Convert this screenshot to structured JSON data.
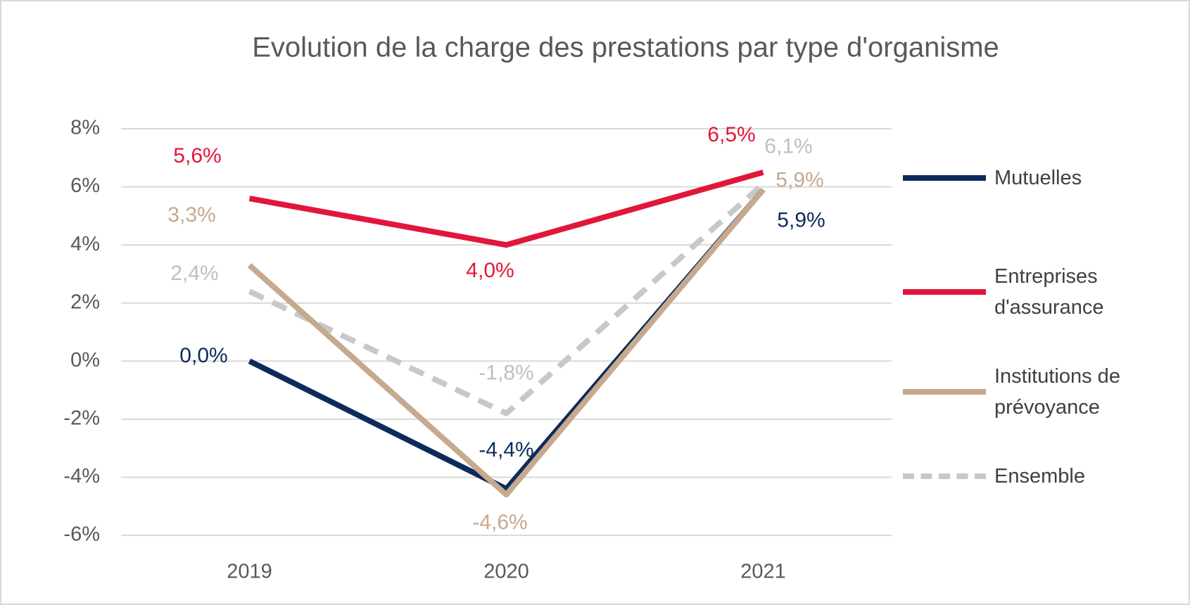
{
  "chart_data": {
    "type": "line",
    "title": "Evolution de la charge des prestations par type d'organisme",
    "categories": [
      "2019",
      "2020",
      "2021"
    ],
    "ylim": [
      -6,
      8
    ],
    "yticks": [
      {
        "value": -6,
        "label": "-6%"
      },
      {
        "value": -4,
        "label": "-4%"
      },
      {
        "value": -2,
        "label": "-2%"
      },
      {
        "value": 0,
        "label": "0%"
      },
      {
        "value": 2,
        "label": "2%"
      },
      {
        "value": 4,
        "label": "4%"
      },
      {
        "value": 6,
        "label": "6%"
      },
      {
        "value": 8,
        "label": "8%"
      }
    ],
    "grid": true,
    "legend": "right",
    "series": [
      {
        "name": "Mutuelles",
        "color": "#0d2a5c",
        "values": [
          0.0,
          -4.4,
          5.9
        ],
        "value_labels": [
          "0,0%",
          "-4,4%",
          "5,9%"
        ]
      },
      {
        "name": "Entreprises d'assurance",
        "color": "#e2163a",
        "values": [
          5.6,
          4.0,
          6.5
        ],
        "value_labels": [
          "5,6%",
          "4,0%",
          "6,5%"
        ]
      },
      {
        "name": "Institutions de prévoyance",
        "color": "#c7a98e",
        "values": [
          3.3,
          -4.6,
          5.9
        ],
        "value_labels": [
          "3,3%",
          "-4,6%",
          "5,9%"
        ]
      },
      {
        "name": "Ensemble",
        "color": "#c8c8c8",
        "values": [
          2.4,
          -1.8,
          6.1
        ],
        "value_labels": [
          "2,4%",
          "-1,8%",
          "6,1%"
        ],
        "dashed": true
      }
    ]
  }
}
